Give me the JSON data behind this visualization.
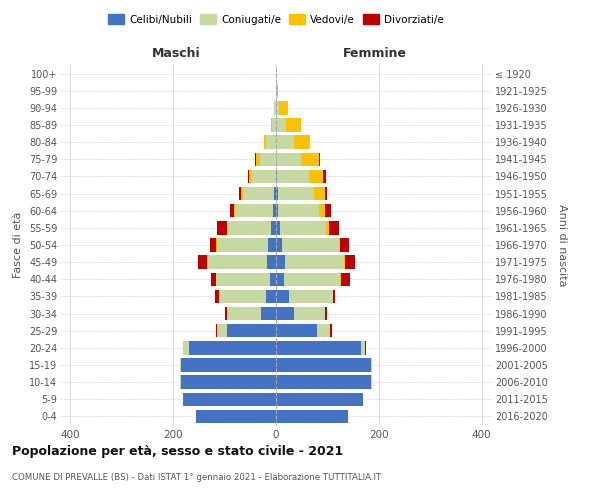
{
  "age_groups": [
    "0-4",
    "5-9",
    "10-14",
    "15-19",
    "20-24",
    "25-29",
    "30-34",
    "35-39",
    "40-44",
    "45-49",
    "50-54",
    "55-59",
    "60-64",
    "65-69",
    "70-74",
    "75-79",
    "80-84",
    "85-89",
    "90-94",
    "95-99",
    "100+"
  ],
  "birth_years": [
    "2016-2020",
    "2011-2015",
    "2006-2010",
    "2001-2005",
    "1996-2000",
    "1991-1995",
    "1986-1990",
    "1981-1985",
    "1976-1980",
    "1971-1975",
    "1966-1970",
    "1961-1965",
    "1956-1960",
    "1951-1955",
    "1946-1950",
    "1941-1945",
    "1936-1940",
    "1931-1935",
    "1926-1930",
    "1921-1925",
    "≤ 1920"
  ],
  "male": {
    "celibi": [
      155,
      180,
      185,
      185,
      170,
      95,
      30,
      20,
      12,
      18,
      15,
      10,
      5,
      3,
      0,
      0,
      0,
      0,
      0,
      0,
      0
    ],
    "coniugati": [
      0,
      0,
      2,
      2,
      10,
      20,
      65,
      90,
      105,
      115,
      100,
      85,
      75,
      62,
      48,
      32,
      20,
      8,
      3,
      0,
      0
    ],
    "vedovi": [
      0,
      0,
      0,
      0,
      0,
      0,
      0,
      0,
      0,
      1,
      1,
      1,
      2,
      3,
      4,
      6,
      3,
      2,
      0,
      0,
      0
    ],
    "divorziati": [
      0,
      0,
      0,
      0,
      0,
      2,
      4,
      8,
      10,
      18,
      12,
      18,
      8,
      4,
      2,
      2,
      1,
      0,
      0,
      0,
      0
    ]
  },
  "female": {
    "nubili": [
      140,
      170,
      185,
      185,
      165,
      80,
      35,
      25,
      15,
      18,
      12,
      8,
      4,
      3,
      2,
      0,
      0,
      0,
      0,
      0,
      0
    ],
    "coniugate": [
      0,
      0,
      2,
      2,
      8,
      25,
      60,
      85,
      110,
      115,
      110,
      90,
      80,
      70,
      62,
      48,
      35,
      20,
      5,
      2,
      0
    ],
    "vedove": [
      0,
      0,
      0,
      0,
      0,
      0,
      0,
      0,
      1,
      2,
      2,
      5,
      12,
      22,
      28,
      35,
      32,
      28,
      18,
      2,
      0
    ],
    "divorziate": [
      0,
      0,
      0,
      0,
      2,
      3,
      4,
      5,
      18,
      18,
      18,
      20,
      10,
      5,
      5,
      3,
      0,
      0,
      0,
      0,
      0
    ]
  },
  "colors": {
    "celibi": "#4472c4",
    "coniugati": "#c5d9a0",
    "vedovi": "#ffc000",
    "divorziati": "#c00000"
  },
  "xlim": 420,
  "title": "Popolazione per età, sesso e stato civile - 2021",
  "subtitle": "COMUNE DI PREVALLE (BS) - Dati ISTAT 1° gennaio 2021 - Elaborazione TUTTITALIA.IT",
  "ylabel_left": "Fasce di età",
  "ylabel_right": "Anni di nascita",
  "xlabel_maschi": "Maschi",
  "xlabel_femmine": "Femmine",
  "bg_color": "#ffffff",
  "grid_color": "#cccccc"
}
